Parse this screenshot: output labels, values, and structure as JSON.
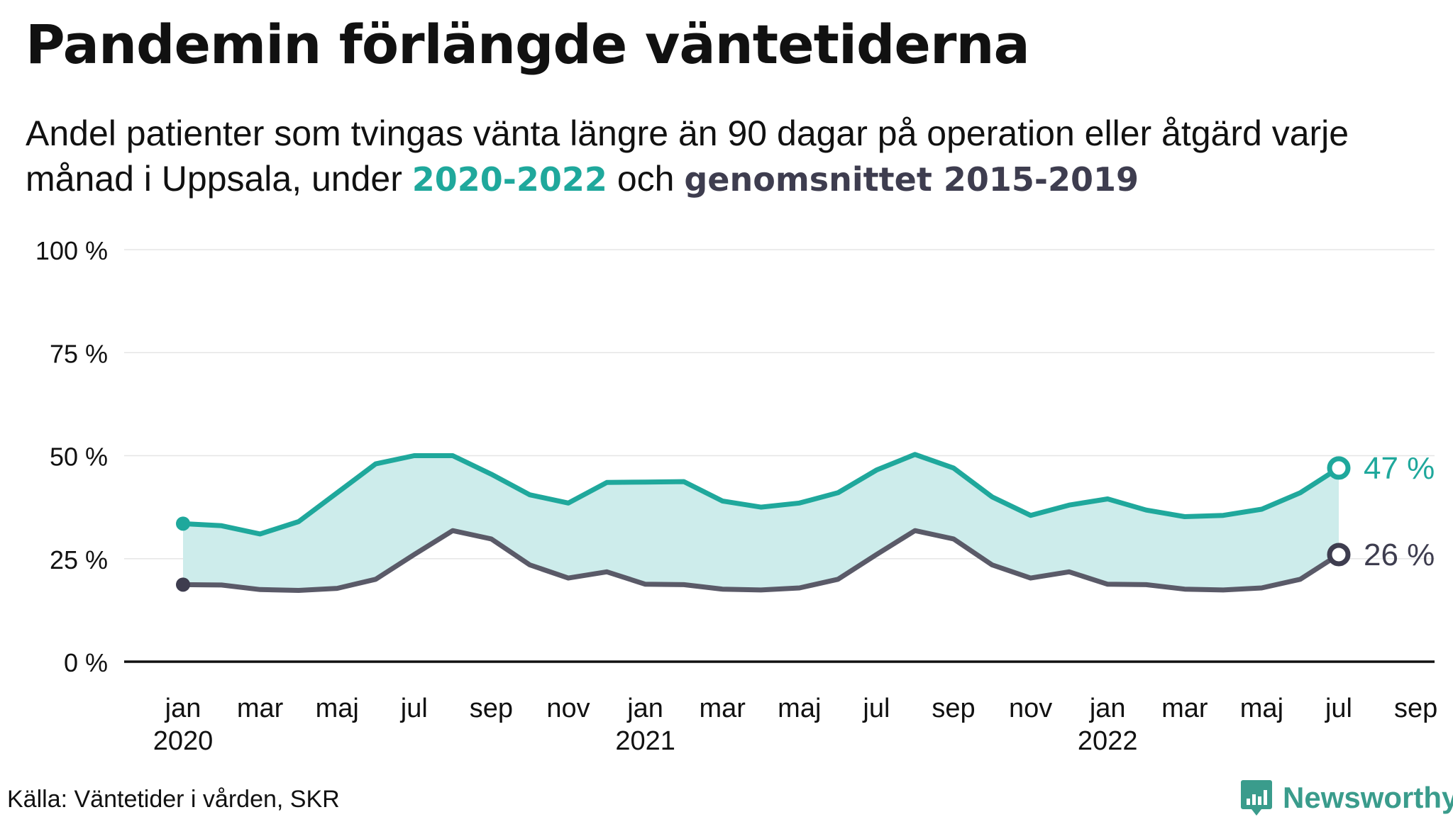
{
  "title": "Pandemin förlängde väntetiderna",
  "subtitle": {
    "part1": "Andel patienter  som tvingas vänta längre än 90 dagar på operation eller åtgärd varje månad i Uppsala, under ",
    "series1_label": "2020-2022",
    "part2": " och ",
    "series2_label": "genomsnittet 2015-2019"
  },
  "source": "Källa: Väntetider i vården, SKR",
  "brand": {
    "name": "Newsworthy",
    "icon": "newsworthy-logo-icon"
  },
  "colors": {
    "series1": "#1fa89c",
    "series2": "#5a5a68",
    "band": "#cdeceb",
    "series2_end_text": "#3e3d4f"
  },
  "chart_data": {
    "type": "line",
    "ylim": [
      0,
      100
    ],
    "yticks": [
      0,
      25,
      50,
      75,
      100
    ],
    "ytick_labels": [
      "0 %",
      "25 %",
      "50 %",
      "75 %",
      "100 %"
    ],
    "xticks": [
      {
        "month": 0,
        "label": "jan",
        "year": "2020"
      },
      {
        "month": 2,
        "label": "mar"
      },
      {
        "month": 4,
        "label": "maj"
      },
      {
        "month": 6,
        "label": "jul"
      },
      {
        "month": 8,
        "label": "sep"
      },
      {
        "month": 10,
        "label": "nov"
      },
      {
        "month": 12,
        "label": "jan",
        "year": "2021"
      },
      {
        "month": 14,
        "label": "mar"
      },
      {
        "month": 16,
        "label": "maj"
      },
      {
        "month": 18,
        "label": "jul"
      },
      {
        "month": 20,
        "label": "sep"
      },
      {
        "month": 22,
        "label": "nov"
      },
      {
        "month": 24,
        "label": "jan",
        "year": "2022"
      },
      {
        "month": 26,
        "label": "mar"
      },
      {
        "month": 28,
        "label": "maj"
      },
      {
        "month": 30,
        "label": "jul"
      },
      {
        "month": 32,
        "label": "sep"
      }
    ],
    "xlim": [
      0,
      32
    ],
    "grid": true,
    "band_between_series": true,
    "series": [
      {
        "name": "2020-2022",
        "end_label": "47 %",
        "values": [
          33.5,
          33,
          31,
          34,
          41,
          48,
          50,
          50,
          45.5,
          40.5,
          38.5,
          43.5,
          43.6,
          43.7,
          39,
          37.5,
          38.5,
          41,
          46.5,
          50.3,
          47,
          40,
          35.5,
          38,
          39.5,
          36.8,
          35.2,
          35.5,
          37,
          41,
          47
        ]
      },
      {
        "name": "genomsnittet 2015-2019",
        "end_label": "26 %",
        "values": [
          18.7,
          18.6,
          17.5,
          17.3,
          17.8,
          20,
          26,
          31.8,
          29.8,
          23.5,
          20.3,
          21.8,
          18.8,
          18.7,
          17.6,
          17.4,
          17.9,
          20,
          26,
          31.8,
          29.8,
          23.5,
          20.3,
          21.8,
          18.8,
          18.7,
          17.6,
          17.4,
          17.9,
          20,
          26
        ]
      }
    ]
  }
}
